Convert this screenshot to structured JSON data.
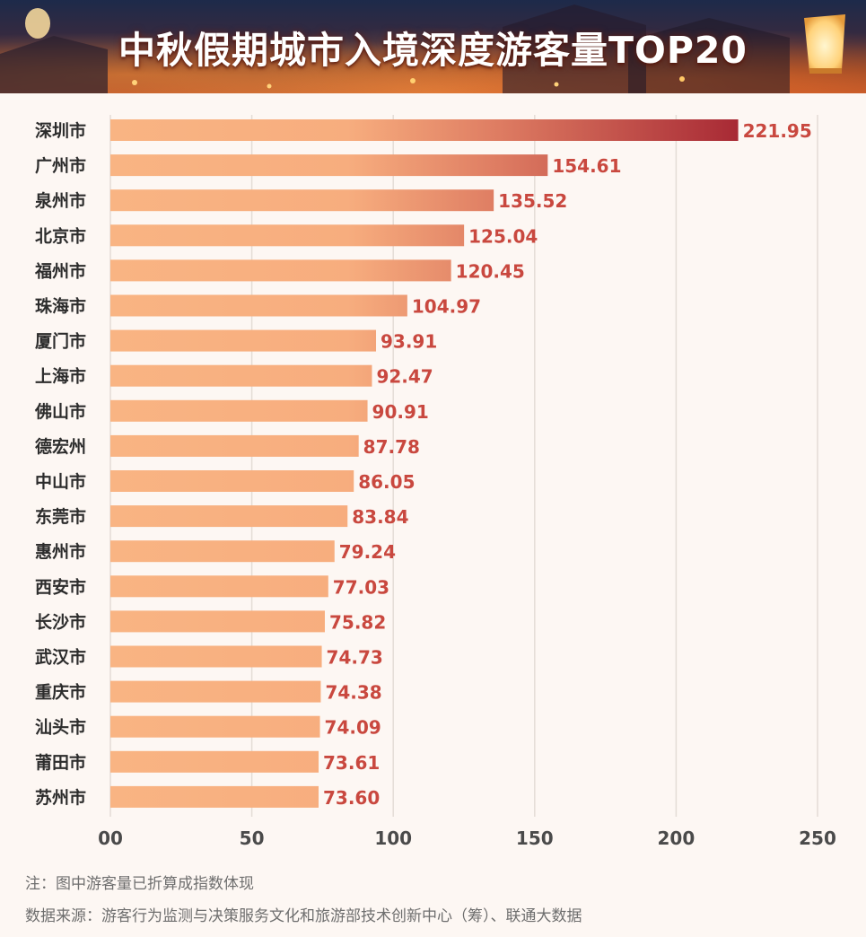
{
  "chart_data": {
    "type": "bar",
    "orientation": "horizontal",
    "title": "中秋假期城市入境深度游客量TOP20",
    "categories": [
      "深圳市",
      "广州市",
      "泉州市",
      "北京市",
      "福州市",
      "珠海市",
      "厦门市",
      "上海市",
      "佛山市",
      "德宏州",
      "中山市",
      "东莞市",
      "惠州市",
      "西安市",
      "长沙市",
      "武汉市",
      "重庆市",
      "汕头市",
      "莆田市",
      "苏州市"
    ],
    "values": [
      221.95,
      154.61,
      135.52,
      125.04,
      120.45,
      104.97,
      93.91,
      92.47,
      90.91,
      87.78,
      86.05,
      83.84,
      79.24,
      77.03,
      75.82,
      74.73,
      74.38,
      74.09,
      73.61,
      73.6
    ],
    "value_labels": [
      "221.95",
      "154.61",
      "135.52",
      "125.04",
      "120.45",
      "104.97",
      "93.91",
      "92.47",
      "90.91",
      "87.78",
      "86.05",
      "83.84",
      "79.24",
      "77.03",
      "75.82",
      "74.73",
      "74.38",
      "74.09",
      "73.61",
      "73.60"
    ],
    "x_ticks": [
      "00",
      "50",
      "100",
      "150",
      "200",
      "250"
    ],
    "xlim": [
      0,
      250
    ],
    "grid": true,
    "legend": "none",
    "colors": {
      "bar_light": "#f9b483",
      "bar_dark": "#a82a35",
      "value_label": "#c9483f",
      "grid": "#e4dcd6"
    }
  },
  "notes": {
    "note": "注：图中游客量已折算成指数体现",
    "source": "数据来源：游客行为监测与决策服务文化和旅游部技术创新中心（筹）、联通大数据"
  }
}
